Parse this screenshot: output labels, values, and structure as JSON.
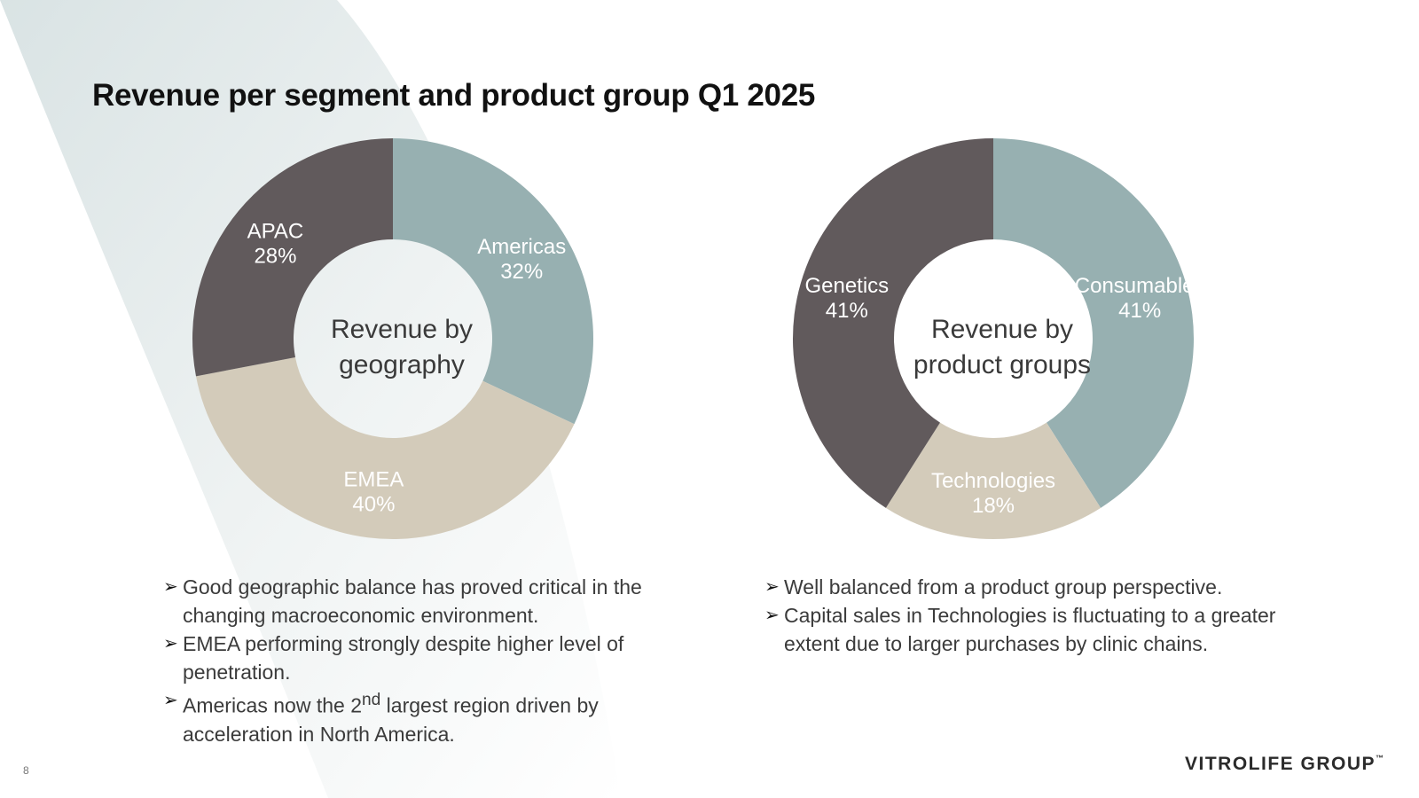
{
  "slide": {
    "title": "Revenue per segment and product group Q1 2025",
    "page_number": "8",
    "logo": "VITROLIFE GROUP",
    "logo_tm": "™"
  },
  "colors": {
    "teal": "#97b0b1",
    "taupe": "#d3cbba",
    "dark": "#615a5c",
    "label_text": "#ffffff",
    "swoosh": "#dde6e7"
  },
  "chart_data": [
    {
      "type": "pie",
      "donut": true,
      "center_label": "Revenue by geography",
      "center_lines": [
        "Revenue by",
        "geography"
      ],
      "slices": [
        {
          "name": "Americas",
          "value": 32,
          "pct_label": "32%",
          "color": "#97b0b1"
        },
        {
          "name": "EMEA",
          "value": 40,
          "pct_label": "40%",
          "color": "#d3cbba"
        },
        {
          "name": "APAC",
          "value": 28,
          "pct_label": "28%",
          "color": "#615a5c"
        }
      ]
    },
    {
      "type": "pie",
      "donut": true,
      "center_label": "Revenue by product groups",
      "center_lines": [
        "Revenue by",
        "product groups"
      ],
      "slices": [
        {
          "name": "Consumables",
          "value": 41,
          "pct_label": "41%",
          "color": "#97b0b1"
        },
        {
          "name": "Technologies",
          "value": 18,
          "pct_label": "18%",
          "color": "#d3cbba"
        },
        {
          "name": "Genetics",
          "value": 41,
          "pct_label": "41%",
          "color": "#615a5c"
        }
      ]
    }
  ],
  "bullets_geo": [
    {
      "text": "Good geographic balance has proved critical in the changing macroeconomic environment."
    },
    {
      "text": "EMEA performing strongly despite higher level of penetration."
    },
    {
      "pre": "Americas now the 2",
      "sup": "nd",
      "post": " largest region driven by acceleration in North America."
    }
  ],
  "bullets_prod": [
    {
      "text": "Well balanced from a product group perspective."
    },
    {
      "text": "Capital sales in Technologies is fluctuating to a greater extent due to larger purchases by clinic chains."
    }
  ],
  "arrow_glyph": "➢"
}
